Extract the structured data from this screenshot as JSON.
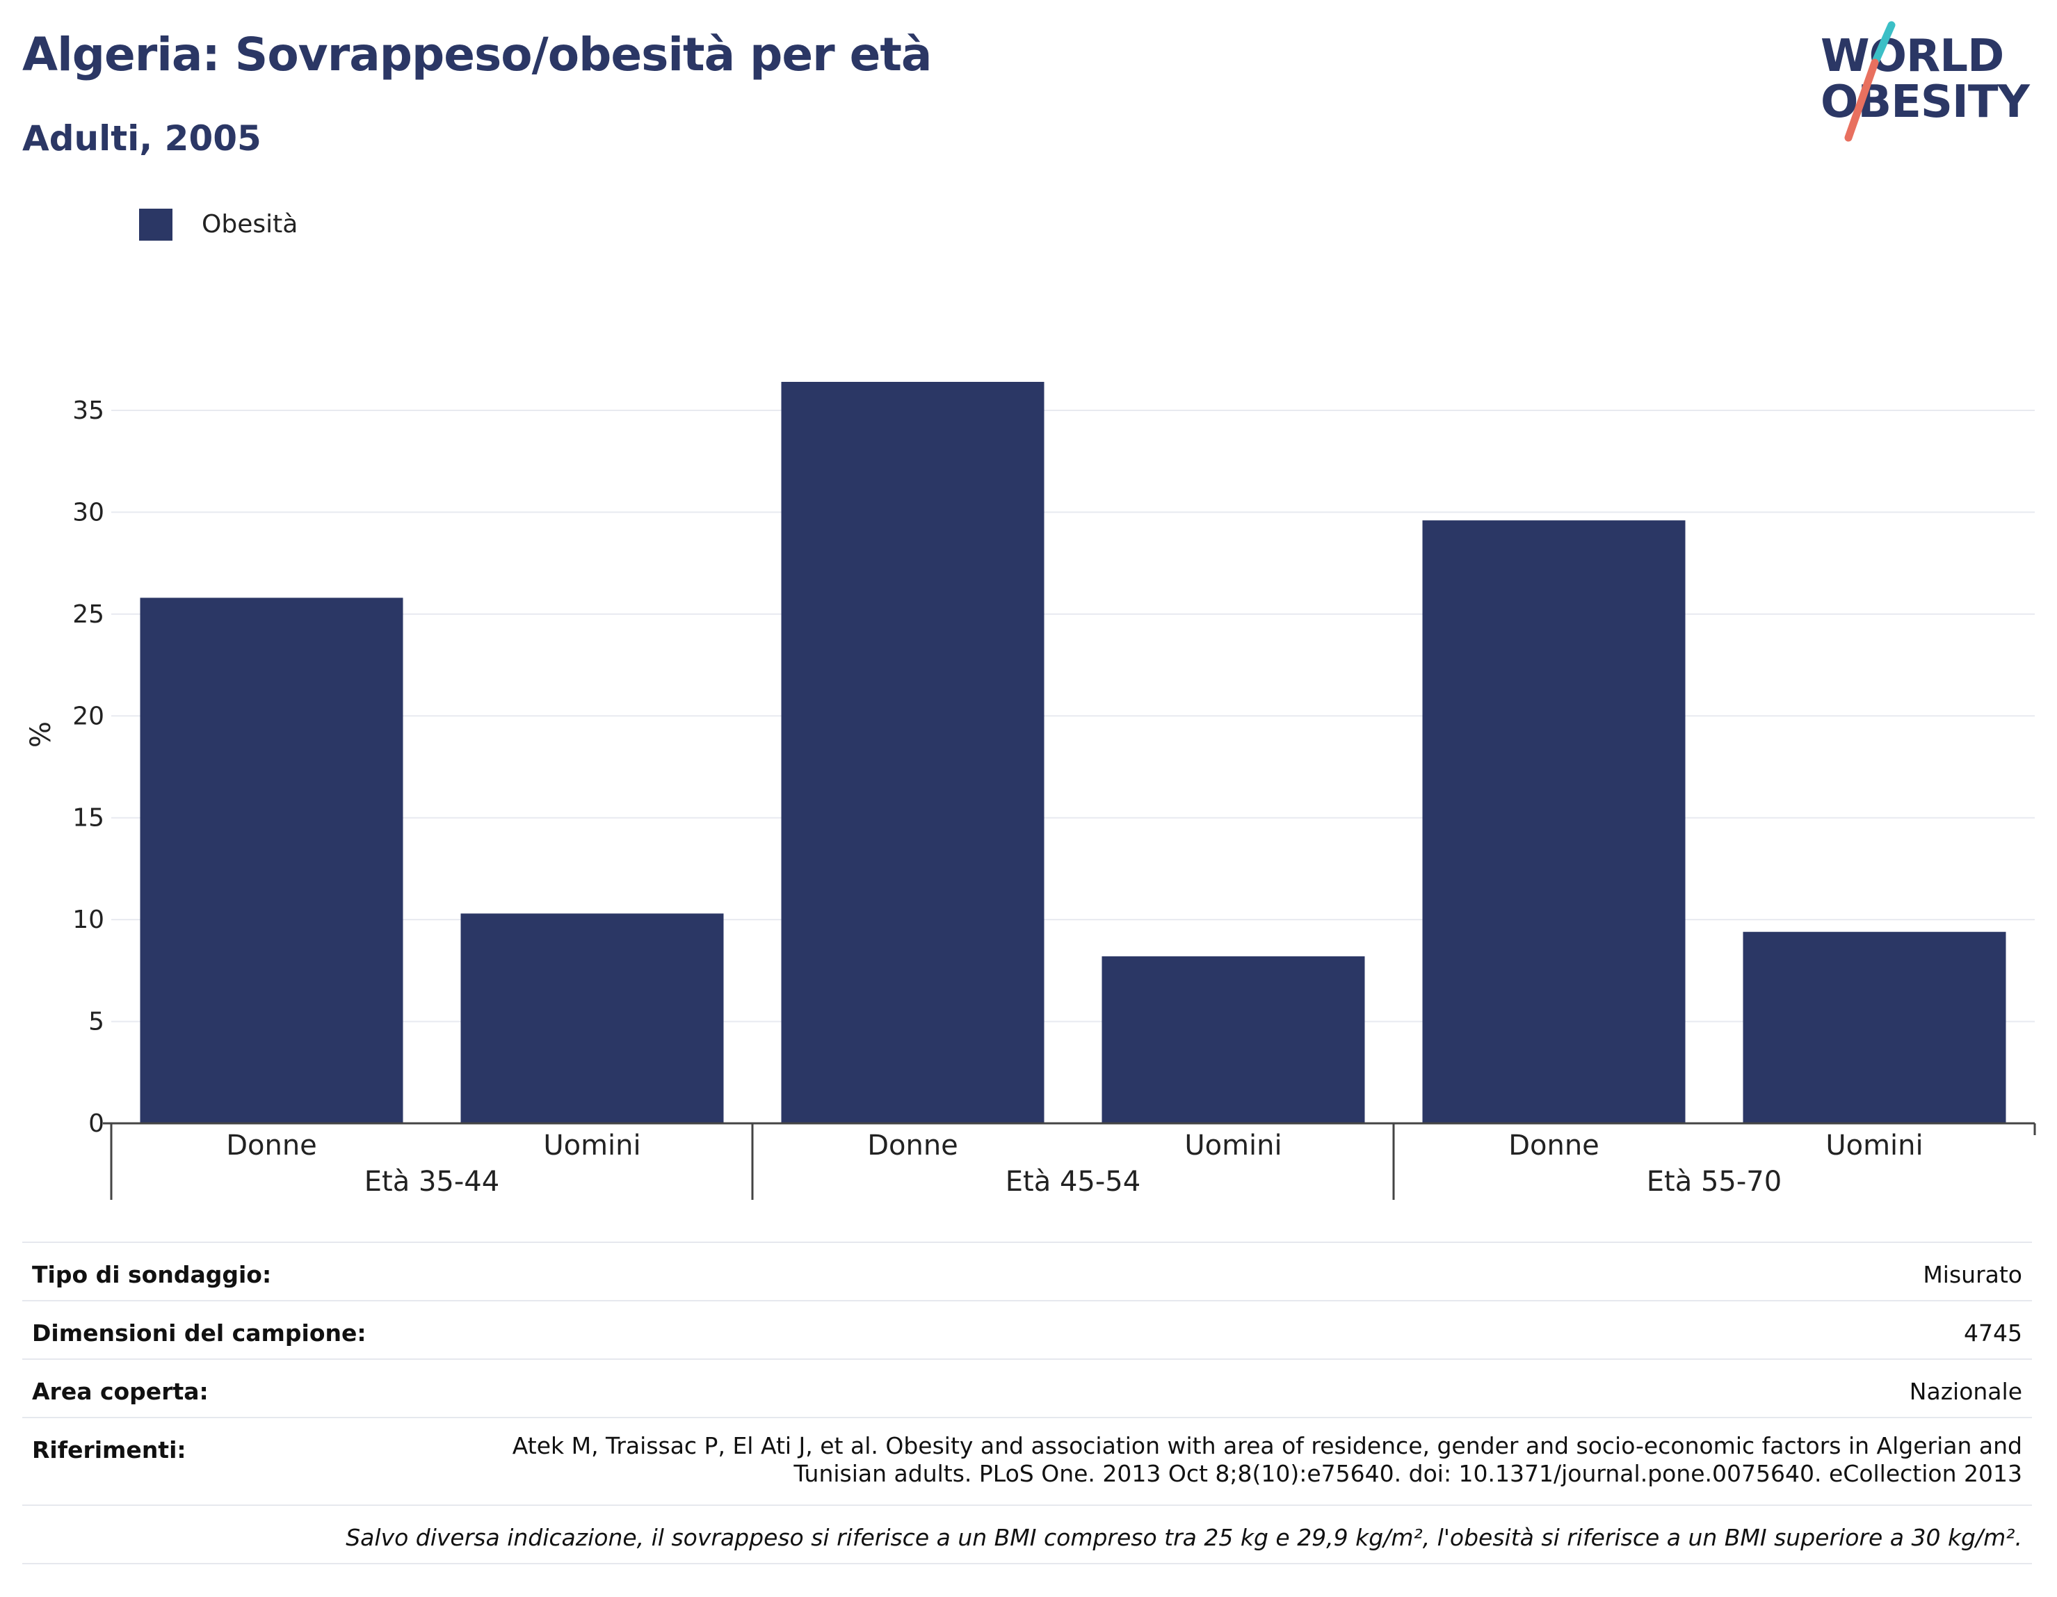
{
  "header": {
    "title": "Algeria: Sovrappeso/obesità per età",
    "subtitle": "Adulti, 2005"
  },
  "logo": {
    "line1": "WORLD",
    "line2": "OBESITY",
    "accent_teal": "#3bbfc6",
    "accent_red": "#e8705f"
  },
  "legend": {
    "label": "Obesità",
    "color": "#2b3765"
  },
  "chart_data": {
    "type": "bar",
    "ylabel": "%",
    "xlabel": "",
    "ylim": [
      0,
      38
    ],
    "yticks": [
      0,
      5,
      10,
      15,
      20,
      25,
      30,
      35
    ],
    "grid": true,
    "legend_position": "top-left",
    "bar_color": "#2b3765",
    "groups": [
      {
        "label": "Età 35-44",
        "categories": [
          "Donne",
          "Uomini"
        ]
      },
      {
        "label": "Età 45-54",
        "categories": [
          "Donne",
          "Uomini"
        ]
      },
      {
        "label": "Età 55-70",
        "categories": [
          "Donne",
          "Uomini"
        ]
      }
    ],
    "series": [
      {
        "name": "Obesità",
        "values": [
          25.8,
          10.3,
          36.4,
          8.2,
          29.6,
          9.4
        ]
      }
    ]
  },
  "info": {
    "rows": [
      {
        "key": "Tipo di sondaggio:",
        "value": "Misurato"
      },
      {
        "key": "Dimensioni del campione:",
        "value": "4745"
      },
      {
        "key": "Area coperta:",
        "value": "Nazionale"
      },
      {
        "key": "Riferimenti:",
        "value_line1": "Atek M, Traissac P, El Ati J, et al. Obesity and association with area of residence, gender and socio-economic factors in Algerian and",
        "value_line2": "Tunisian adults. PLoS One. 2013 Oct 8;8(10):e75640. doi: 10.1371/journal.pone.0075640. eCollection 2013"
      }
    ],
    "footnote": "Salvo diversa indicazione, il sovrappeso si riferisce a un BMI compreso tra 25 kg e 29,9 kg/m², l'obesità si riferisce a un BMI superiore a 30 kg/m²."
  }
}
